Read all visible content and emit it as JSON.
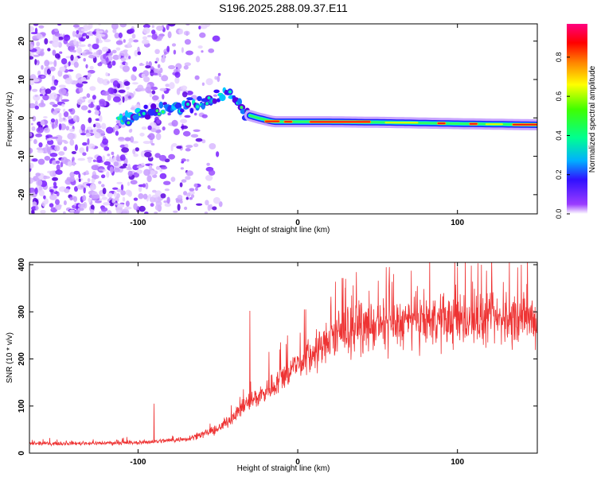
{
  "title": "S196.2025.288.09.37.E11",
  "chart_data": [
    {
      "type": "heatmap",
      "name": "spectrogram",
      "xlabel": "Height of straight line (km)",
      "ylabel": "Frequency (Hz)",
      "xlim": [
        -168,
        150
      ],
      "ylim": [
        -25,
        24.5
      ],
      "xticks": [
        -100,
        0,
        100
      ],
      "yticks": [
        -20,
        -10,
        0,
        10,
        20
      ],
      "colorbar": {
        "label": "Normalized spectral amplitude",
        "range": [
          0.0,
          0.97
        ],
        "ticks": [
          0.0,
          0.2,
          0.4,
          0.6,
          0.8
        ]
      },
      "ridge": [
        {
          "x": -108,
          "y": 0.0
        },
        {
          "x": -90,
          "y": 2.0
        },
        {
          "x": -72,
          "y": 3.0
        },
        {
          "x": -60,
          "y": 4.0
        },
        {
          "x": -50,
          "y": 5.0
        },
        {
          "x": -42,
          "y": 7.0
        },
        {
          "x": -38,
          "y": 4.0
        },
        {
          "x": -33,
          "y": 1.0
        },
        {
          "x": -25,
          "y": 0.0
        },
        {
          "x": -15,
          "y": -1.0
        },
        {
          "x": 0,
          "y": -1.0
        },
        {
          "x": 20,
          "y": -1.0
        },
        {
          "x": 60,
          "y": -1.2
        },
        {
          "x": 100,
          "y": -1.5
        },
        {
          "x": 150,
          "y": -1.8
        }
      ]
    },
    {
      "type": "line",
      "name": "snr",
      "xlabel": "Height of straight line (km)",
      "ylabel": "SNR (10 * v/v)",
      "xlim": [
        -168,
        150
      ],
      "ylim": [
        0,
        405
      ],
      "xticks": [
        -100,
        0,
        100
      ],
      "yticks": [
        0,
        100,
        200,
        300,
        400
      ],
      "color": "#ee3333",
      "trend": [
        {
          "x": -168,
          "y": 20
        },
        {
          "x": -100,
          "y": 22
        },
        {
          "x": -70,
          "y": 30
        },
        {
          "x": -50,
          "y": 50
        },
        {
          "x": -40,
          "y": 80
        },
        {
          "x": -30,
          "y": 110
        },
        {
          "x": -20,
          "y": 130
        },
        {
          "x": -10,
          "y": 160
        },
        {
          "x": 0,
          "y": 190
        },
        {
          "x": 10,
          "y": 210
        },
        {
          "x": 20,
          "y": 240
        },
        {
          "x": 30,
          "y": 260
        },
        {
          "x": 50,
          "y": 270
        },
        {
          "x": 80,
          "y": 280
        },
        {
          "x": 150,
          "y": 285
        }
      ],
      "peaks": [
        {
          "x": -90,
          "y": 105
        },
        {
          "x": -30,
          "y": 302
        },
        {
          "x": -18,
          "y": 215
        },
        {
          "x": 5,
          "y": 305
        },
        {
          "x": 30,
          "y": 370
        },
        {
          "x": 60,
          "y": 380
        },
        {
          "x": 100,
          "y": 395
        },
        {
          "x": 115,
          "y": 400
        },
        {
          "x": 140,
          "y": 400
        }
      ]
    }
  ]
}
